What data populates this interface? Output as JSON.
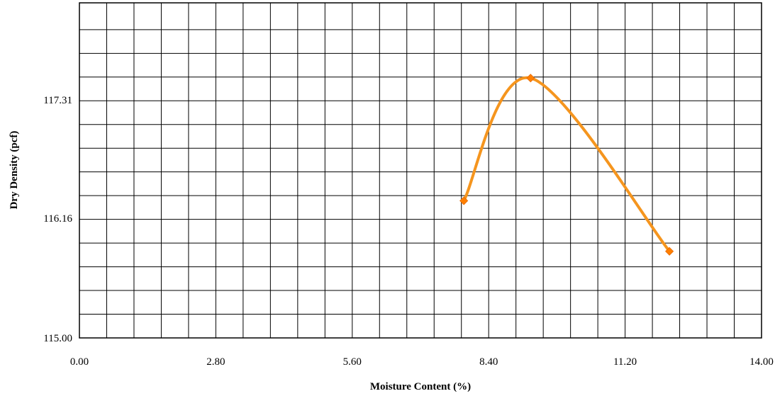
{
  "chart_data": {
    "type": "scatter",
    "title": "",
    "xlabel": "Moisture Content (%)",
    "ylabel": "Dry Density (pcf)",
    "xlim": [
      0,
      14
    ],
    "ylim": [
      115.0,
      118.25
    ],
    "x_ticks": [
      0.0,
      2.8,
      5.6,
      8.4,
      11.2,
      14.0
    ],
    "x_tick_labels": [
      "0.00",
      "2.80",
      "5.60",
      "8.40",
      "11.20",
      "14.00"
    ],
    "y_ticks": [
      115.0,
      116.16,
      117.31
    ],
    "y_tick_labels": [
      "115.00",
      "116.16",
      "117.31"
    ],
    "grid": true,
    "x_minor_step": 0.56,
    "y_minor_step": 0.23,
    "smooth_line": true,
    "series": [
      {
        "points": [
          {
            "x": 7.89,
            "y": 116.33
          },
          {
            "x": 9.26,
            "y": 117.52
          },
          {
            "x": 12.11,
            "y": 115.84
          }
        ]
      }
    ],
    "colors": {
      "series": "#f5951e",
      "marker": "#ff7f00",
      "grid": "#000000"
    }
  }
}
